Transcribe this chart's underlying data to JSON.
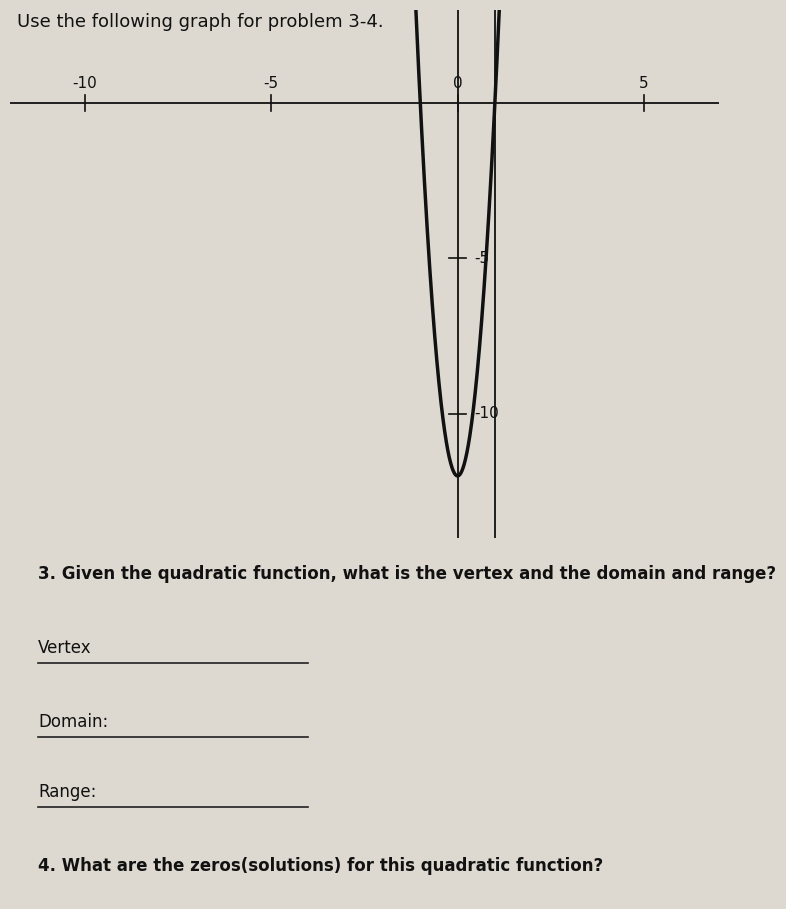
{
  "title": "Use the following graph for problem 3-4.",
  "paper_color": "#ddd9d0",
  "axis_color": "#111111",
  "parabola_color": "#111111",
  "parabola_lw": 2.5,
  "vertex_x": 0,
  "vertex_y": -12,
  "zeros": [
    -1,
    1
  ],
  "xlim": [
    -12,
    7
  ],
  "ylim": [
    -14,
    3
  ],
  "x_tick_labels": [
    [
      -10,
      "-10"
    ],
    [
      -5,
      "-5"
    ],
    [
      0,
      "0"
    ],
    [
      5,
      "5"
    ]
  ],
  "y_tick_labels": [
    [
      -5,
      "-5"
    ],
    [
      -10,
      "-10"
    ]
  ],
  "extra_vline_x": 1,
  "question3": "3. Given the quadratic function, what is the vertex and the domain and range?",
  "label_vertex": "Vertex",
  "label_domain": "Domain:",
  "label_range": "Range:",
  "question4": "4. What are the zeros(solutions) for this quadratic function?",
  "line_color": "#222222",
  "text_color": "#111111",
  "font_size_title": 13,
  "font_size_labels": 12,
  "font_size_tick": 11,
  "font_size_question": 12
}
